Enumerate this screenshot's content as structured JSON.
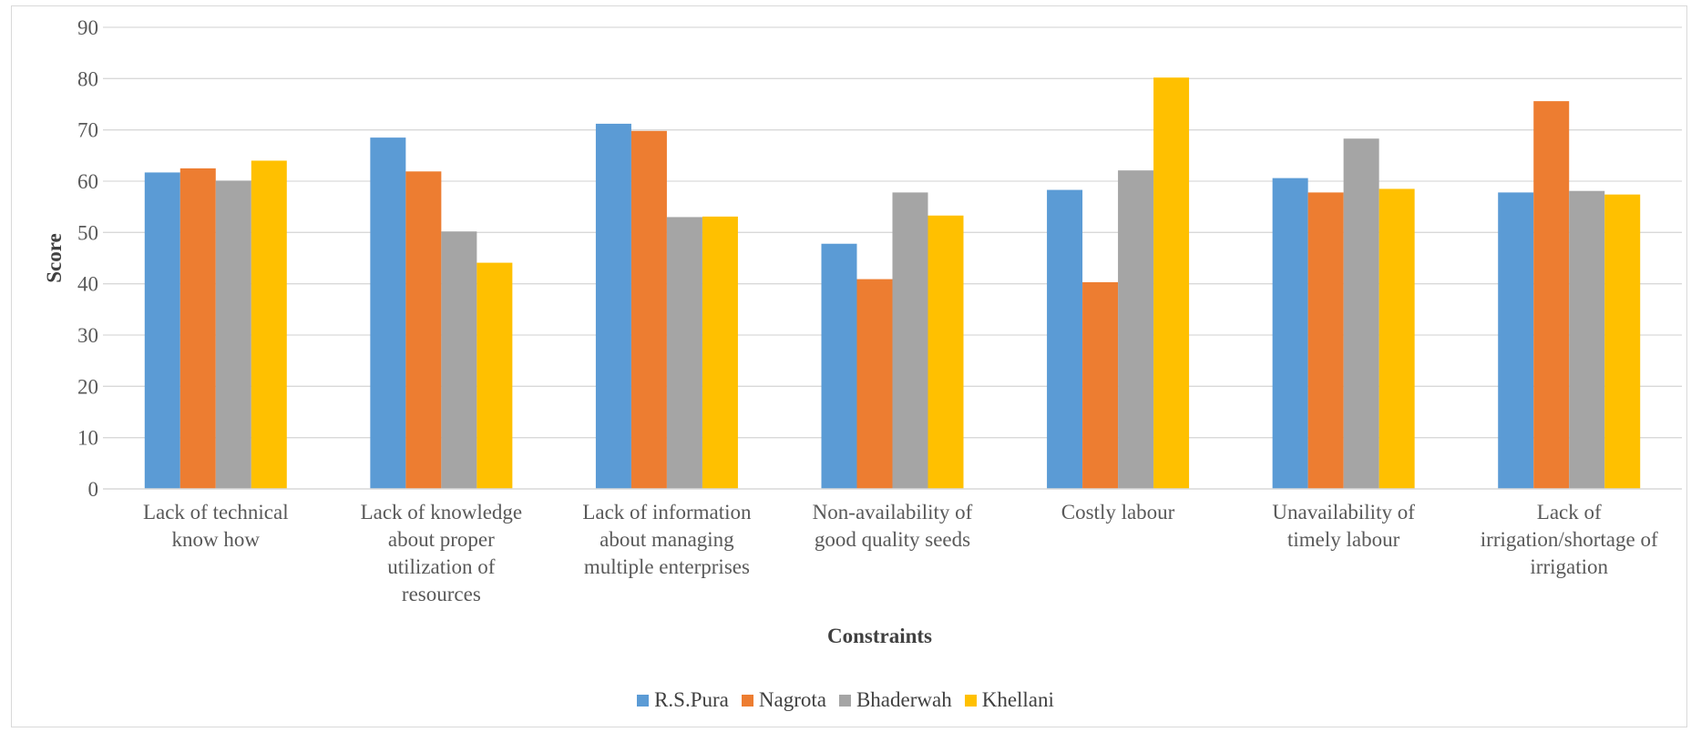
{
  "chart_data": {
    "type": "bar",
    "xlabel": "Constraints",
    "ylabel": "Score",
    "ylim": [
      0,
      90
    ],
    "yticks": [
      "0",
      "10",
      "20",
      "30",
      "40",
      "50",
      "60",
      "70",
      "80",
      "90"
    ],
    "grid": true,
    "legend_position": "bottom",
    "categories": [
      [
        "Lack of technical",
        "know how"
      ],
      [
        "Lack of knowledge",
        "about proper",
        "utilization of",
        "resources"
      ],
      [
        "Lack of information",
        "about managing",
        "multiple enterprises"
      ],
      [
        "Non-availability of",
        "good quality seeds"
      ],
      [
        "Costly labour"
      ],
      [
        "Unavailability of",
        "timely labour"
      ],
      [
        "Lack of",
        "irrigation/shortage of",
        "irrigation"
      ]
    ],
    "series": [
      {
        "name": "R.S.Pura",
        "color": "#5b9bd5",
        "values": [
          61.7,
          68.5,
          71.2,
          47.8,
          58.3,
          60.6,
          57.8
        ]
      },
      {
        "name": "Nagrota",
        "color": "#ed7d31",
        "values": [
          62.5,
          61.9,
          69.8,
          40.9,
          40.3,
          57.8,
          75.6
        ]
      },
      {
        "name": "Bhaderwah",
        "color": "#a5a5a5",
        "values": [
          60.1,
          50.2,
          53.0,
          57.8,
          62.1,
          68.3,
          58.1
        ]
      },
      {
        "name": "Khellani",
        "color": "#ffc000",
        "values": [
          64.0,
          44.1,
          53.1,
          53.3,
          80.2,
          58.5,
          57.4
        ]
      }
    ]
  }
}
